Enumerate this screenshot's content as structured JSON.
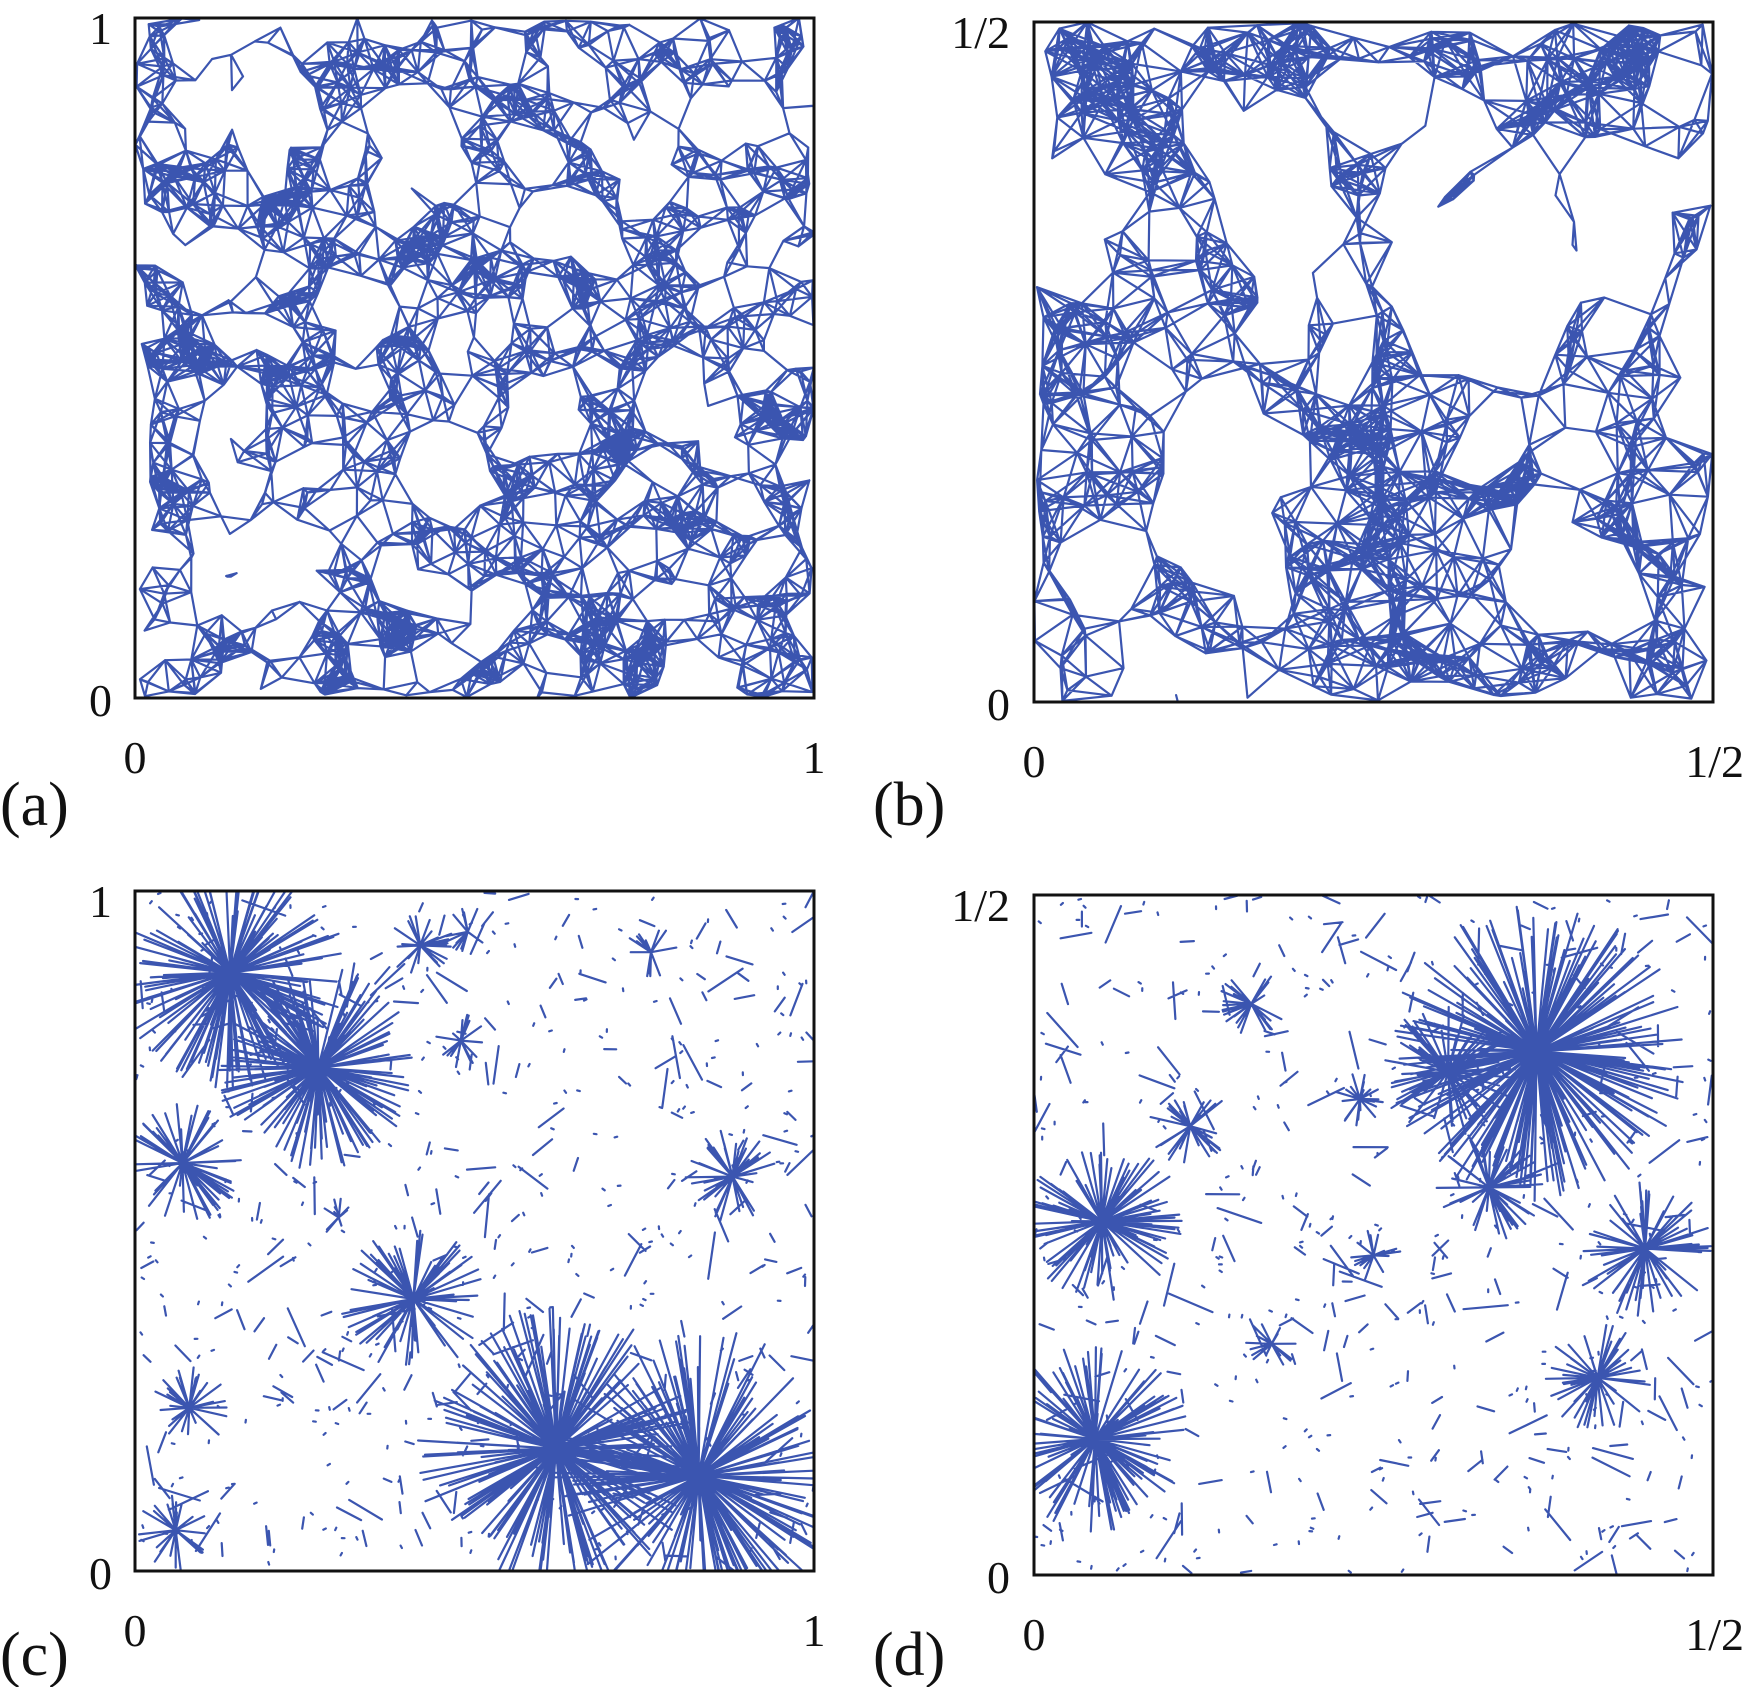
{
  "figure": {
    "line_color": "#3b55b0",
    "frame_color": "#111111",
    "panels": [
      {
        "id": "a",
        "label": "(a)",
        "x_ticks": [
          "0",
          "1"
        ],
        "y_ticks": [
          "0",
          "1"
        ],
        "style": "dense-mesh"
      },
      {
        "id": "b",
        "label": "(b)",
        "x_ticks": [
          "0",
          "1/2"
        ],
        "y_ticks": [
          "0",
          "1/2"
        ],
        "style": "dense-mesh"
      },
      {
        "id": "c",
        "label": "(c)",
        "x_ticks": [
          "0",
          "1"
        ],
        "y_ticks": [
          "0",
          "1"
        ],
        "style": "sparse-stars"
      },
      {
        "id": "d",
        "label": "(d)",
        "x_ticks": [
          "0",
          "1/2"
        ],
        "y_ticks": [
          "0",
          "1/2"
        ],
        "style": "sparse-stars"
      }
    ]
  }
}
